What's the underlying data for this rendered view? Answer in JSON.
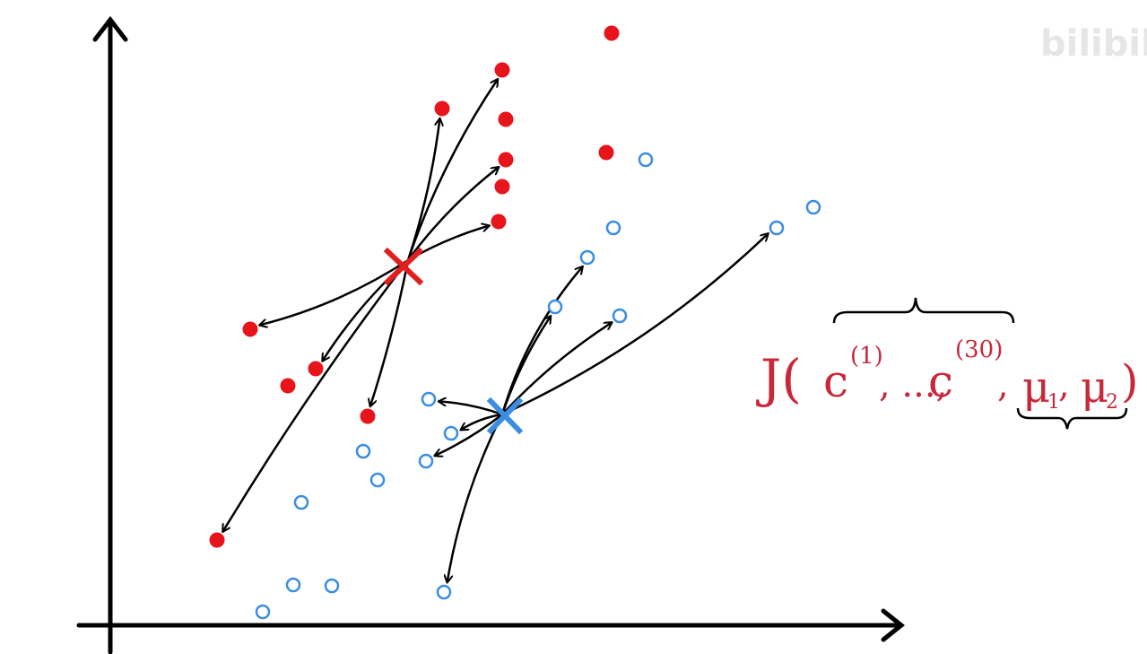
{
  "formula": {
    "parts": [
      "J(",
      "c",
      "(1)",
      ", ..., ",
      "c",
      "(30)",
      ", ",
      "μ",
      "1",
      ", ",
      "μ",
      "2",
      ")"
    ]
  },
  "watermark": "bilibili"
}
